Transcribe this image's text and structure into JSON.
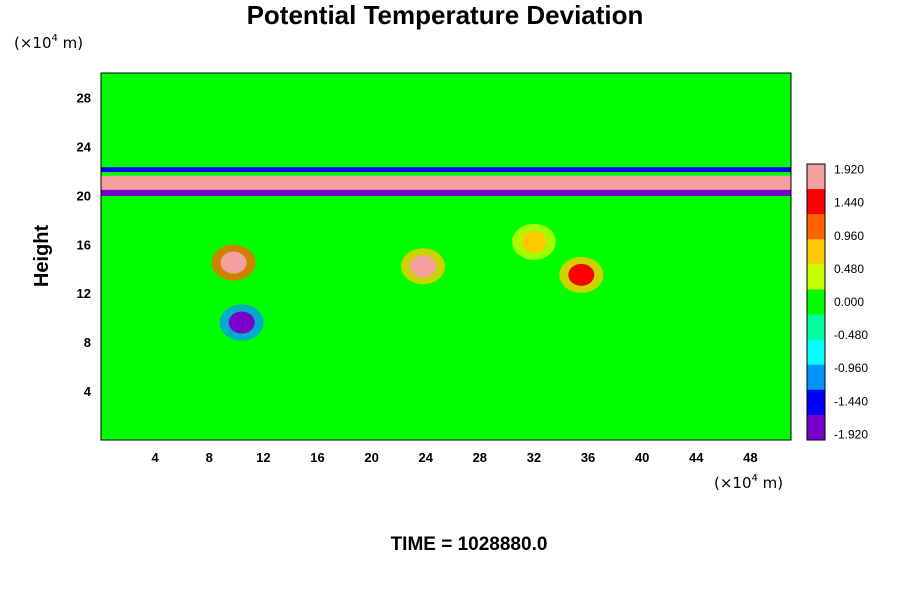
{
  "chart_data": {
    "type": "heatmap",
    "title": "Potential Temperature Deviation",
    "xlabel": "",
    "ylabel": "Height",
    "x_unit_prefix": "(×10",
    "x_unit_exp": "4",
    "x_unit_suffix": " m)",
    "y_unit_prefix": "(×10",
    "y_unit_exp": "4",
    "y_unit_suffix": " m)",
    "xlim": [
      0,
      51
    ],
    "ylim": [
      0,
      30
    ],
    "x_ticks": [
      "4",
      "8",
      "12",
      "16",
      "20",
      "24",
      "28",
      "32",
      "36",
      "40",
      "44",
      "48"
    ],
    "y_ticks": [
      "4",
      "8",
      "12",
      "16",
      "20",
      "24",
      "28"
    ],
    "colorbar": {
      "min": -2.0,
      "max": 2.0,
      "labels": [
        "1.920",
        "1.440",
        "0.960",
        "0.480",
        "0.000",
        "-0.480",
        "-0.960",
        "-1.440",
        "-1.920"
      ],
      "colors": [
        "#f5a0a0",
        "#ff0000",
        "#ff6400",
        "#ffc800",
        "#c8ff00",
        "#00ff00",
        "#00ffa0",
        "#00ffff",
        "#0096ff",
        "#0000ff",
        "#7800c8"
      ]
    },
    "features": [
      {
        "kind": "band",
        "x": [
          0,
          51
        ],
        "y_center": 21.0,
        "thickness": 1.2,
        "value": 1.9
      },
      {
        "kind": "band",
        "x": [
          0,
          51
        ],
        "y_center": 20.2,
        "thickness": 0.5,
        "value": -1.8
      },
      {
        "kind": "band",
        "x": [
          0,
          51
        ],
        "y_center": 22.1,
        "thickness": 0.4,
        "value": -1.6
      },
      {
        "kind": "blob",
        "x": 9.8,
        "y": 14.5,
        "value": 1.9
      },
      {
        "kind": "blob",
        "x": 23.8,
        "y": 14.2,
        "value": 1.7
      },
      {
        "kind": "blob",
        "x": 35.5,
        "y": 13.5,
        "value": 1.6
      },
      {
        "kind": "blob",
        "x": 10.4,
        "y": 9.6,
        "value": -1.9
      },
      {
        "kind": "blob",
        "x": 32.0,
        "y": 16.2,
        "value": 0.6
      }
    ],
    "background_value": 0.0
  },
  "footer": {
    "time_label": "TIME = 1028880.0"
  }
}
